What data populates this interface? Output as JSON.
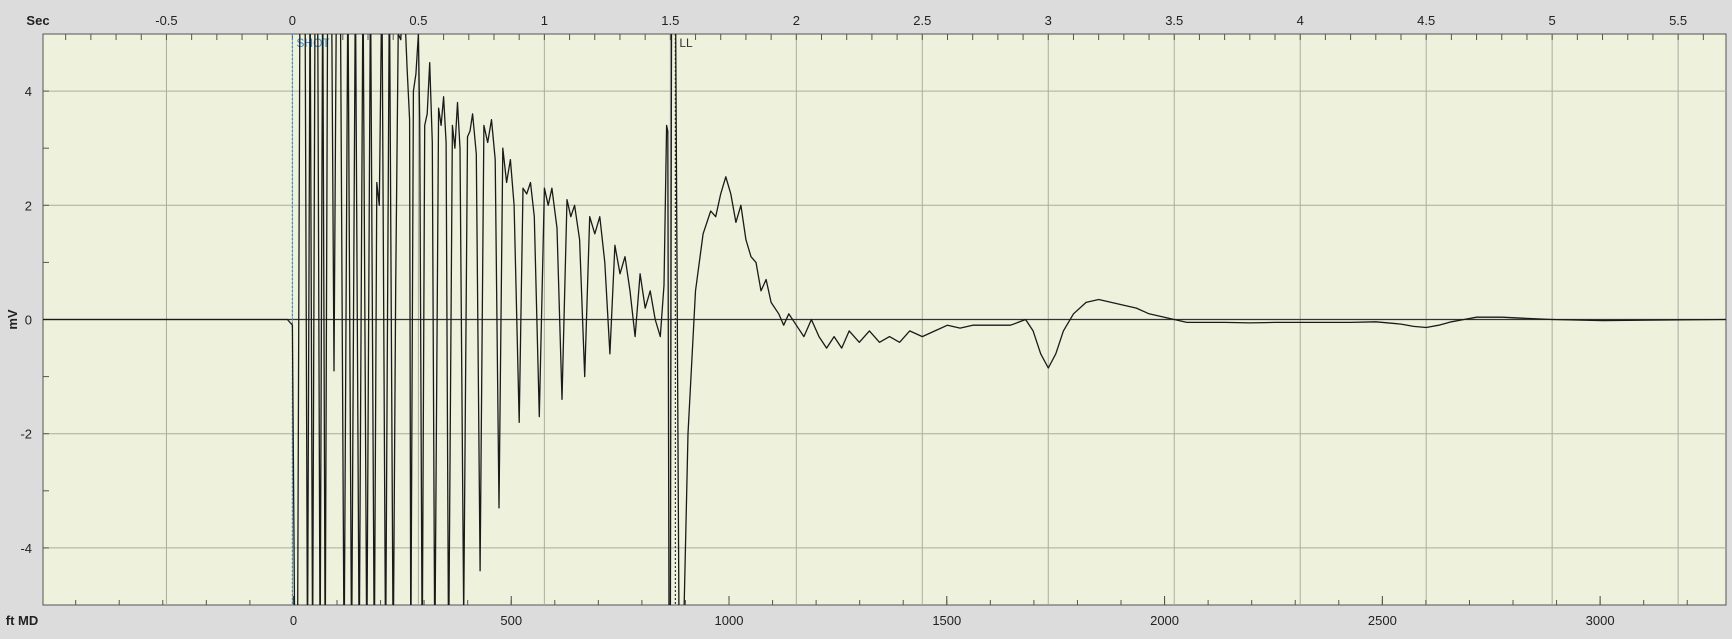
{
  "chart_data": {
    "type": "line",
    "axes": {
      "top": {
        "unit_label": "Sec",
        "range": [
          -0.99,
          5.69
        ],
        "ticks": [
          -0.5,
          0,
          0.5,
          1,
          1.5,
          2,
          2.5,
          3,
          3.5,
          4,
          4.5,
          5,
          5.5
        ],
        "tick_labels": [
          "-0.5",
          "0",
          "0.5",
          "1",
          "1.5",
          "2",
          "2.5",
          "3",
          "3.5",
          "4",
          "4.5",
          "5",
          "5.5"
        ],
        "minor_step": 0.1
      },
      "bottom": {
        "unit_label": "ft MD",
        "range": [
          -575,
          3289
        ],
        "ticks": [
          0,
          500,
          1000,
          1500,
          2000,
          2500,
          3000
        ],
        "tick_labels": [
          "0",
          "500",
          "1000",
          "1500",
          "2000",
          "2500",
          "3000"
        ],
        "minor_step": 100
      },
      "left": {
        "unit_label": "mV",
        "range": [
          -5,
          5
        ],
        "ticks": [
          4,
          2,
          0,
          -2,
          -4
        ],
        "tick_labels": [
          "4",
          "2",
          "0",
          "-2",
          "-4"
        ],
        "minor_step": 1
      }
    },
    "grid": true,
    "markers": [
      {
        "label": "SHOT",
        "time_sec": 0.0,
        "color": "#3a8fd0",
        "style": "dotted"
      },
      {
        "label": "LL",
        "time_sec": 1.52,
        "color": "#333333",
        "style": "dotted"
      }
    ],
    "series": [
      {
        "color": "#1a1a1a",
        "x_unit": "sec",
        "y_unit": "mV",
        "points": [
          [
            -0.99,
            0
          ],
          [
            -0.02,
            0
          ],
          [
            0.0,
            -0.1
          ],
          [
            0.01,
            -6
          ],
          [
            0.02,
            -6
          ],
          [
            0.03,
            6
          ],
          [
            0.05,
            6
          ],
          [
            0.06,
            -6
          ],
          [
            0.07,
            6
          ],
          [
            0.08,
            -6
          ],
          [
            0.09,
            6
          ],
          [
            0.1,
            6
          ],
          [
            0.11,
            -6
          ],
          [
            0.12,
            6
          ],
          [
            0.13,
            -6
          ],
          [
            0.14,
            6
          ],
          [
            0.155,
            6
          ],
          [
            0.165,
            -0.9
          ],
          [
            0.175,
            6
          ],
          [
            0.19,
            6
          ],
          [
            0.205,
            -6
          ],
          [
            0.22,
            6
          ],
          [
            0.235,
            -6
          ],
          [
            0.25,
            6
          ],
          [
            0.265,
            -6
          ],
          [
            0.28,
            6
          ],
          [
            0.295,
            -6
          ],
          [
            0.31,
            6
          ],
          [
            0.325,
            -6
          ],
          [
            0.335,
            2.4
          ],
          [
            0.345,
            2.0
          ],
          [
            0.355,
            6
          ],
          [
            0.37,
            -6
          ],
          [
            0.385,
            6
          ],
          [
            0.4,
            -6
          ],
          [
            0.41,
            0.6
          ],
          [
            0.42,
            5.0
          ],
          [
            0.43,
            4.9
          ],
          [
            0.44,
            6
          ],
          [
            0.455,
            4.4
          ],
          [
            0.465,
            3.5
          ],
          [
            0.47,
            -6
          ],
          [
            0.48,
            4.0
          ],
          [
            0.49,
            4.3
          ],
          [
            0.5,
            5.0
          ],
          [
            0.505,
            3.5
          ],
          [
            0.515,
            -6
          ],
          [
            0.525,
            3.4
          ],
          [
            0.535,
            3.6
          ],
          [
            0.545,
            4.5
          ],
          [
            0.555,
            3.1
          ],
          [
            0.565,
            -6
          ],
          [
            0.58,
            3.7
          ],
          [
            0.59,
            3.4
          ],
          [
            0.6,
            3.9
          ],
          [
            0.61,
            3.1
          ],
          [
            0.62,
            -6
          ],
          [
            0.635,
            3.4
          ],
          [
            0.645,
            3.0
          ],
          [
            0.655,
            3.8
          ],
          [
            0.665,
            3.0
          ],
          [
            0.68,
            -5.2
          ],
          [
            0.695,
            3.2
          ],
          [
            0.705,
            3.3
          ],
          [
            0.715,
            3.6
          ],
          [
            0.73,
            2.9
          ],
          [
            0.745,
            -4.4
          ],
          [
            0.76,
            3.4
          ],
          [
            0.775,
            3.1
          ],
          [
            0.79,
            3.5
          ],
          [
            0.805,
            2.8
          ],
          [
            0.82,
            -3.3
          ],
          [
            0.835,
            3.0
          ],
          [
            0.85,
            2.4
          ],
          [
            0.865,
            2.8
          ],
          [
            0.88,
            2.0
          ],
          [
            0.9,
            -1.8
          ],
          [
            0.915,
            2.3
          ],
          [
            0.93,
            2.2
          ],
          [
            0.945,
            2.4
          ],
          [
            0.96,
            1.8
          ],
          [
            0.98,
            -1.7
          ],
          [
            1.0,
            2.3
          ],
          [
            1.015,
            2.0
          ],
          [
            1.03,
            2.3
          ],
          [
            1.05,
            1.6
          ],
          [
            1.07,
            -1.4
          ],
          [
            1.09,
            2.1
          ],
          [
            1.105,
            1.8
          ],
          [
            1.12,
            2.0
          ],
          [
            1.14,
            1.4
          ],
          [
            1.16,
            -1.0
          ],
          [
            1.18,
            1.8
          ],
          [
            1.2,
            1.5
          ],
          [
            1.22,
            1.8
          ],
          [
            1.24,
            1.0
          ],
          [
            1.26,
            -0.6
          ],
          [
            1.28,
            1.3
          ],
          [
            1.3,
            0.8
          ],
          [
            1.32,
            1.1
          ],
          [
            1.34,
            0.5
          ],
          [
            1.36,
            -0.3
          ],
          [
            1.38,
            0.8
          ],
          [
            1.4,
            0.2
          ],
          [
            1.42,
            0.5
          ],
          [
            1.44,
            0.0
          ],
          [
            1.46,
            -0.3
          ],
          [
            1.475,
            0.6
          ],
          [
            1.485,
            3.4
          ],
          [
            1.49,
            3.3
          ],
          [
            1.495,
            -6
          ],
          [
            1.5,
            -6
          ],
          [
            1.505,
            6
          ],
          [
            1.52,
            6
          ],
          [
            1.535,
            -6
          ],
          [
            1.55,
            -6
          ],
          [
            1.57,
            -2
          ],
          [
            1.6,
            0.5
          ],
          [
            1.63,
            1.5
          ],
          [
            1.66,
            1.9
          ],
          [
            1.68,
            1.8
          ],
          [
            1.7,
            2.2
          ],
          [
            1.72,
            2.5
          ],
          [
            1.74,
            2.2
          ],
          [
            1.76,
            1.7
          ],
          [
            1.78,
            2.0
          ],
          [
            1.8,
            1.4
          ],
          [
            1.82,
            1.1
          ],
          [
            1.84,
            1.0
          ],
          [
            1.86,
            0.5
          ],
          [
            1.88,
            0.7
          ],
          [
            1.9,
            0.3
          ],
          [
            1.93,
            0.1
          ],
          [
            1.95,
            -0.1
          ],
          [
            1.97,
            0.1
          ],
          [
            2.0,
            -0.1
          ],
          [
            2.03,
            -0.3
          ],
          [
            2.06,
            0.0
          ],
          [
            2.09,
            -0.3
          ],
          [
            2.12,
            -0.5
          ],
          [
            2.15,
            -0.3
          ],
          [
            2.18,
            -0.5
          ],
          [
            2.21,
            -0.2
          ],
          [
            2.25,
            -0.4
          ],
          [
            2.29,
            -0.2
          ],
          [
            2.33,
            -0.4
          ],
          [
            2.37,
            -0.3
          ],
          [
            2.41,
            -0.4
          ],
          [
            2.45,
            -0.2
          ],
          [
            2.5,
            -0.3
          ],
          [
            2.55,
            -0.2
          ],
          [
            2.6,
            -0.1
          ],
          [
            2.65,
            -0.15
          ],
          [
            2.7,
            -0.1
          ],
          [
            2.75,
            -0.1
          ],
          [
            2.8,
            -0.1
          ],
          [
            2.85,
            -0.1
          ],
          [
            2.88,
            -0.05
          ],
          [
            2.91,
            0.0
          ],
          [
            2.94,
            -0.2
          ],
          [
            2.97,
            -0.6
          ],
          [
            3.0,
            -0.85
          ],
          [
            3.03,
            -0.6
          ],
          [
            3.06,
            -0.2
          ],
          [
            3.1,
            0.1
          ],
          [
            3.15,
            0.3
          ],
          [
            3.2,
            0.35
          ],
          [
            3.25,
            0.3
          ],
          [
            3.3,
            0.25
          ],
          [
            3.35,
            0.2
          ],
          [
            3.4,
            0.1
          ],
          [
            3.45,
            0.05
          ],
          [
            3.5,
            0.0
          ],
          [
            3.55,
            -0.05
          ],
          [
            3.6,
            -0.05
          ],
          [
            3.7,
            -0.05
          ],
          [
            3.8,
            -0.06
          ],
          [
            3.9,
            -0.05
          ],
          [
            4.0,
            -0.05
          ],
          [
            4.1,
            -0.05
          ],
          [
            4.2,
            -0.05
          ],
          [
            4.3,
            -0.04
          ],
          [
            4.4,
            -0.08
          ],
          [
            4.45,
            -0.12
          ],
          [
            4.5,
            -0.14
          ],
          [
            4.55,
            -0.1
          ],
          [
            4.6,
            -0.04
          ],
          [
            4.65,
            0.0
          ],
          [
            4.7,
            0.04
          ],
          [
            4.8,
            0.04
          ],
          [
            4.9,
            0.02
          ],
          [
            5.0,
            0.0
          ],
          [
            5.2,
            -0.02
          ],
          [
            5.4,
            -0.01
          ],
          [
            5.69,
            0.0
          ]
        ]
      }
    ]
  }
}
